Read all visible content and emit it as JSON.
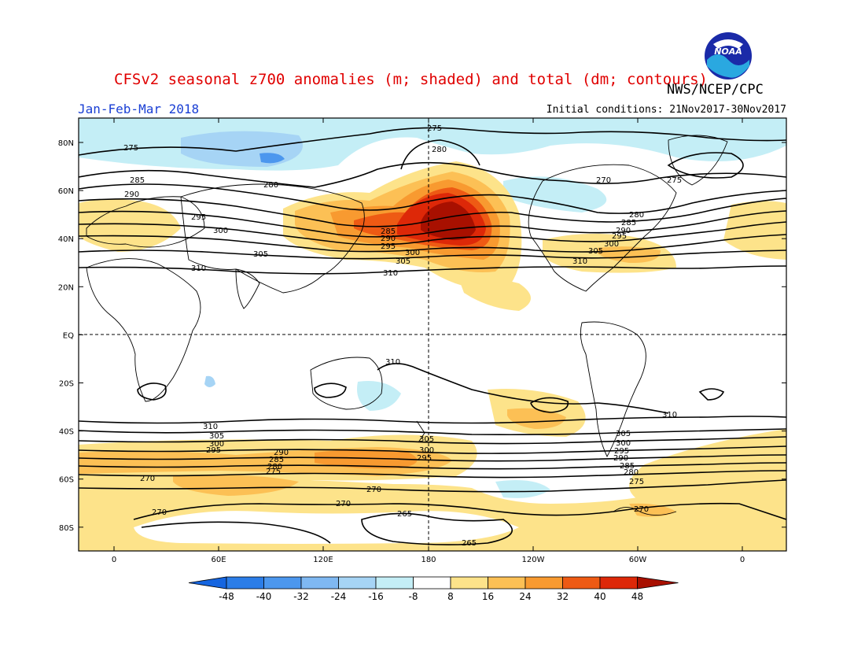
{
  "title": "CFSv2 seasonal z700 anomalies (m; shaded) and total (dm; contours)",
  "agency": "NWS/NCEP/CPC",
  "period": "Jan-Feb-Mar 2018",
  "initial_conditions": "Initial conditions: 21Nov2017-30Nov2017",
  "logo": {
    "text": "NOAA",
    "icon": "noaa-logo-icon"
  },
  "lat_labels": [
    "80N",
    "60N",
    "40N",
    "20N",
    "EQ",
    "20S",
    "40S",
    "60S",
    "80S"
  ],
  "lon_labels": [
    "0",
    "60E",
    "120E",
    "180",
    "120W",
    "60W",
    "0"
  ],
  "colorbar": {
    "labels": [
      "-48",
      "-40",
      "-32",
      "-24",
      "-16",
      "-8",
      "8",
      "16",
      "24",
      "32",
      "40",
      "48"
    ],
    "colors": [
      "#1565e0",
      "#2b7de8",
      "#4c97ee",
      "#7fb8f2",
      "#a6d4f5",
      "#c4eef6",
      "#ffffff",
      "#fde38a",
      "#fcc055",
      "#f89a30",
      "#ee5a14",
      "#dd2808",
      "#a81000"
    ]
  },
  "contour_labels": {
    "north": [
      "275",
      "280",
      "285",
      "290",
      "295",
      "300",
      "305",
      "310"
    ],
    "south": [
      "310",
      "305",
      "300",
      "295",
      "290",
      "285",
      "280",
      "275",
      "270",
      "265"
    ]
  }
}
